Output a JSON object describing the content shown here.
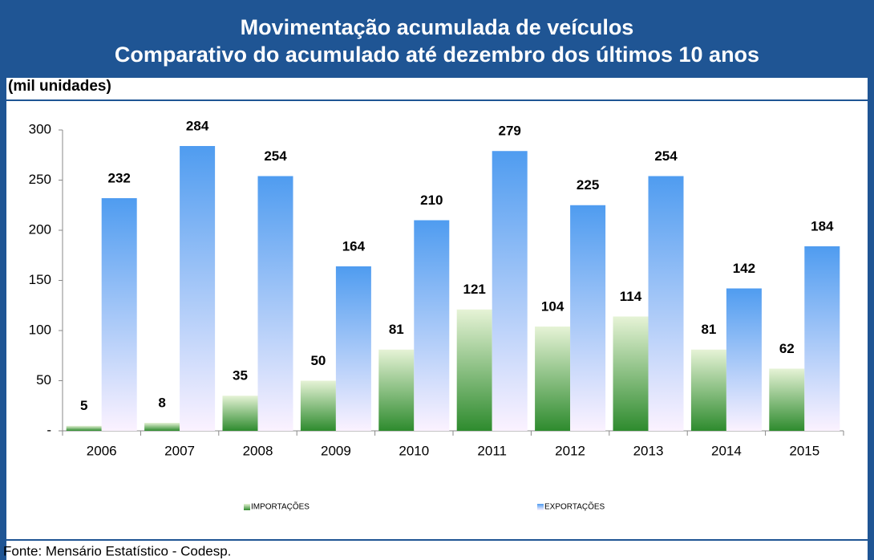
{
  "chart_data": {
    "type": "bar",
    "title": "Movimentação acumulada de veículos",
    "subtitle": "Comparativo do acumulado até dezembro dos últimos 10 anos",
    "y_label": "(mil unidades)",
    "source": "Fonte: Mensário Estatístico - Codesp.",
    "categories": [
      "2006",
      "2007",
      "2008",
      "2009",
      "2010",
      "2011",
      "2012",
      "2013",
      "2014",
      "2015"
    ],
    "series": [
      {
        "name": "IMPORTAÇÕES",
        "color": "#2e8b2e",
        "values": [
          5,
          8,
          35,
          50,
          81,
          121,
          104,
          114,
          81,
          62
        ]
      },
      {
        "name": "EXPORTAÇÕES",
        "color": "#4f9cf0",
        "values": [
          232,
          284,
          254,
          164,
          210,
          279,
          225,
          254,
          142,
          184
        ]
      }
    ],
    "ylim": [
      0,
      300
    ],
    "yticks": [
      {
        "value": 0,
        "label": "-"
      },
      50,
      100,
      150,
      200,
      250,
      300
    ],
    "grid": false,
    "legend": "bottom"
  }
}
